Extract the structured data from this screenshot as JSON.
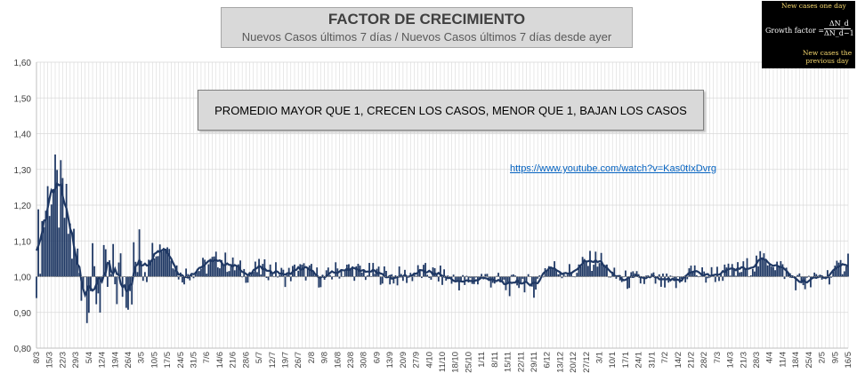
{
  "title": {
    "main": "FACTOR DE CRECIMIENTO",
    "subtitle": "Nuevos Casos últimos 7 días / Nuevos Casos últimos 7 días desde ayer"
  },
  "note": "PROMEDIO MAYOR QUE 1, CRECEN LOS CASOS, MENOR QUE 1, BAJAN LOS CASOS",
  "link": "https://www.youtube.com/watch?v=Kas0tIxDvrg",
  "formula": {
    "top_note": "New cases one day",
    "label": "Growth factor =",
    "numerator": "ΔN_d",
    "denominator": "ΔN_d−1",
    "bottom_note": "New cases the previous day"
  },
  "colors": {
    "bars": "#1f3864",
    "line": "#1f3864",
    "background": "#ffffff",
    "grid": "#d9d9d9"
  },
  "chart_data": {
    "type": "bar",
    "ylim": [
      0.8,
      1.6
    ],
    "y_ticks": [
      "0,80",
      "0,90",
      "1,00",
      "1,10",
      "1,20",
      "1,30",
      "1,40",
      "1,50",
      "1,60"
    ],
    "baseline": 1.0,
    "x_tick_labels": [
      "8/3",
      "15/3",
      "22/3",
      "29/3",
      "5/4",
      "12/4",
      "19/4",
      "26/4",
      "3/5",
      "10/5",
      "17/5",
      "24/5",
      "31/5",
      "7/6",
      "14/6",
      "21/6",
      "28/6",
      "5/7",
      "12/7",
      "19/7",
      "26/7",
      "2/8",
      "9/8",
      "16/8",
      "23/8",
      "30/8",
      "6/9",
      "13/9",
      "20/9",
      "27/9",
      "4/10",
      "11/10",
      "18/10",
      "25/10",
      "1/11",
      "8/11",
      "15/11",
      "22/11",
      "29/11",
      "6/12",
      "13/12",
      "20/12",
      "27/12",
      "3/1",
      "10/1",
      "17/1",
      "24/1",
      "31/1",
      "7/2",
      "14/2",
      "21/2",
      "28/2",
      "7/3",
      "14/3",
      "21/3",
      "28/3",
      "4/4",
      "11/4",
      "18/4",
      "25/4",
      "2/5",
      "9/5",
      "16/5"
    ],
    "weekly_values": [
      1.06,
      1.25,
      1.2,
      1.05,
      0.98,
      0.97,
      0.99,
      1.0,
      1.05,
      1.08,
      1.09,
      1.0,
      1.02,
      1.03,
      1.05,
      1.03,
      1.01,
      1.02,
      1.02,
      1.0,
      1.02,
      1.01,
      0.99,
      1.02,
      1.02,
      1.01,
      1.01,
      1.0,
      1.0,
      1.01,
      1.01,
      1.0,
      0.99,
      0.98,
      1.0,
      0.99,
      0.97,
      0.99,
      0.97,
      1.03,
      1.02,
      1.01,
      1.04,
      1.05,
      1.0,
      0.99,
      0.99,
      0.99,
      0.98,
      0.98,
      1.02,
      1.0,
      1.01,
      1.01,
      1.02,
      1.04,
      1.05,
      1.02,
      0.99,
      0.98,
      1.0,
      1.01,
      1.05
    ],
    "series": [
      {
        "name": "",
        "kind": "bars-daily"
      },
      {
        "name": "",
        "kind": "line-average"
      }
    ],
    "grid": true
  }
}
